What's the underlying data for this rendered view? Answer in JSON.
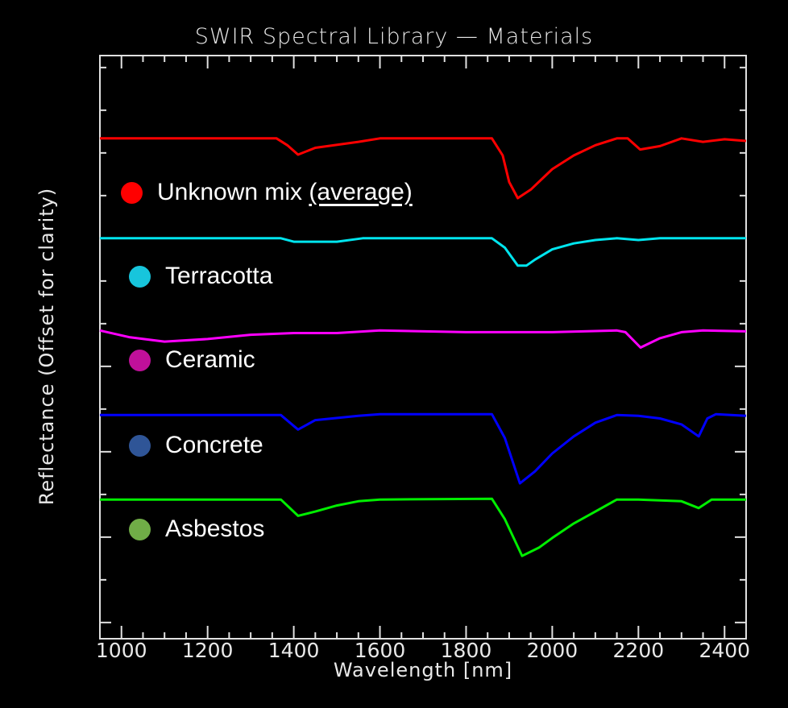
{
  "chart_data": {
    "type": "line",
    "title": "SWIR Spectral Library — Materials",
    "xlabel": "Wavelength [nm]",
    "ylabel": "Reflectance (Offset for clarity)",
    "xlim": [
      950,
      2450
    ],
    "ylim": [
      0,
      6.83
    ],
    "xticks": [
      1000,
      1200,
      1400,
      1600,
      1800,
      2000,
      2200,
      2400
    ],
    "xtick_labels": [
      "1000",
      "1200",
      "1400",
      "1600",
      "1800",
      "2000",
      "2200",
      "2400"
    ],
    "ytick_labels_shown": false,
    "grid": false,
    "legend_placement": "left, inline next to each curve",
    "series": [
      {
        "name": "Unknown mix",
        "name_suffix": "(average)",
        "color": "#ff0000",
        "dot_color": "#ff0000",
        "points": [
          [
            950,
            5.86
          ],
          [
            1360,
            5.86
          ],
          [
            1385,
            5.78
          ],
          [
            1410,
            5.67
          ],
          [
            1450,
            5.75
          ],
          [
            1550,
            5.82
          ],
          [
            1600,
            5.86
          ],
          [
            1860,
            5.86
          ],
          [
            1885,
            5.66
          ],
          [
            1900,
            5.35
          ],
          [
            1920,
            5.16
          ],
          [
            1950,
            5.26
          ],
          [
            2000,
            5.5
          ],
          [
            2050,
            5.66
          ],
          [
            2100,
            5.78
          ],
          [
            2150,
            5.86
          ],
          [
            2175,
            5.86
          ],
          [
            2204,
            5.73
          ],
          [
            2250,
            5.77
          ],
          [
            2300,
            5.86
          ],
          [
            2350,
            5.82
          ],
          [
            2400,
            5.85
          ],
          [
            2450,
            5.83
          ]
        ]
      },
      {
        "name": "Terracotta",
        "color": "#00e5ee",
        "dot_color": "#17c5dc",
        "points": [
          [
            950,
            4.69
          ],
          [
            1370,
            4.69
          ],
          [
            1400,
            4.65
          ],
          [
            1500,
            4.65
          ],
          [
            1560,
            4.69
          ],
          [
            1860,
            4.69
          ],
          [
            1890,
            4.58
          ],
          [
            1920,
            4.37
          ],
          [
            1940,
            4.37
          ],
          [
            1960,
            4.44
          ],
          [
            2000,
            4.56
          ],
          [
            2050,
            4.63
          ],
          [
            2100,
            4.67
          ],
          [
            2150,
            4.69
          ],
          [
            2200,
            4.67
          ],
          [
            2250,
            4.69
          ],
          [
            2450,
            4.69
          ]
        ]
      },
      {
        "name": "Ceramic",
        "color": "#ff00ff",
        "dot_color": "#c0109a",
        "points": [
          [
            950,
            3.61
          ],
          [
            1020,
            3.53
          ],
          [
            1100,
            3.48
          ],
          [
            1200,
            3.51
          ],
          [
            1300,
            3.56
          ],
          [
            1400,
            3.58
          ],
          [
            1500,
            3.58
          ],
          [
            1600,
            3.61
          ],
          [
            1800,
            3.59
          ],
          [
            2000,
            3.59
          ],
          [
            2150,
            3.61
          ],
          [
            2170,
            3.59
          ],
          [
            2205,
            3.41
          ],
          [
            2250,
            3.52
          ],
          [
            2300,
            3.59
          ],
          [
            2350,
            3.61
          ],
          [
            2450,
            3.6
          ]
        ]
      },
      {
        "name": "Concrete",
        "color": "#0000ff",
        "dot_color": "#2f5597",
        "points": [
          [
            950,
            2.62
          ],
          [
            1370,
            2.62
          ],
          [
            1410,
            2.45
          ],
          [
            1450,
            2.56
          ],
          [
            1550,
            2.61
          ],
          [
            1600,
            2.63
          ],
          [
            1860,
            2.63
          ],
          [
            1890,
            2.35
          ],
          [
            1925,
            1.82
          ],
          [
            1960,
            1.96
          ],
          [
            2000,
            2.17
          ],
          [
            2050,
            2.37
          ],
          [
            2100,
            2.53
          ],
          [
            2150,
            2.62
          ],
          [
            2200,
            2.61
          ],
          [
            2250,
            2.58
          ],
          [
            2300,
            2.51
          ],
          [
            2340,
            2.37
          ],
          [
            2360,
            2.58
          ],
          [
            2380,
            2.63
          ],
          [
            2450,
            2.61
          ]
        ]
      },
      {
        "name": "Asbestos",
        "color": "#00ee00",
        "dot_color": "#70ad47",
        "points": [
          [
            950,
            1.63
          ],
          [
            1370,
            1.63
          ],
          [
            1410,
            1.44
          ],
          [
            1450,
            1.49
          ],
          [
            1500,
            1.56
          ],
          [
            1550,
            1.61
          ],
          [
            1600,
            1.63
          ],
          [
            1860,
            1.64
          ],
          [
            1890,
            1.4
          ],
          [
            1930,
            0.97
          ],
          [
            1970,
            1.07
          ],
          [
            2000,
            1.18
          ],
          [
            2050,
            1.35
          ],
          [
            2100,
            1.49
          ],
          [
            2150,
            1.63
          ],
          [
            2200,
            1.63
          ],
          [
            2300,
            1.61
          ],
          [
            2340,
            1.53
          ],
          [
            2370,
            1.63
          ],
          [
            2450,
            1.63
          ]
        ]
      }
    ]
  }
}
